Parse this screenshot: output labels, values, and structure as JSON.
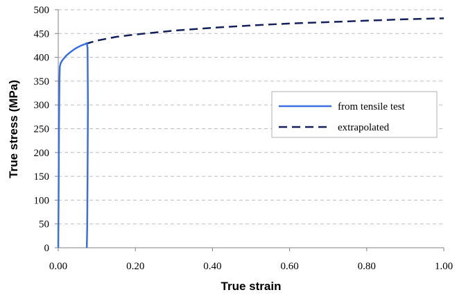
{
  "chart_data": {
    "type": "line",
    "title": "",
    "xlabel": "True strain",
    "ylabel": "True stress (MPa)",
    "xlim": [
      0,
      1
    ],
    "ylim": [
      0,
      500
    ],
    "x_ticks": [
      "0.00",
      "0.20",
      "0.40",
      "0.60",
      "0.80",
      "1.00"
    ],
    "y_ticks": [
      "0",
      "50",
      "100",
      "150",
      "200",
      "250",
      "300",
      "350",
      "400",
      "450",
      "500"
    ],
    "grid": "horizontal dashed",
    "legend_position": "right",
    "series": [
      {
        "name": "from tensile test",
        "color": "#3a6fe0",
        "style": "solid",
        "points": [
          [
            0.0,
            0
          ],
          [
            0.001,
            120
          ],
          [
            0.002,
            260
          ],
          [
            0.003,
            350
          ],
          [
            0.004,
            380
          ],
          [
            0.006,
            387
          ],
          [
            0.01,
            393
          ],
          [
            0.02,
            403
          ],
          [
            0.03,
            410
          ],
          [
            0.04,
            416
          ],
          [
            0.05,
            421
          ],
          [
            0.06,
            425
          ],
          [
            0.07,
            428
          ],
          [
            0.074,
            430
          ],
          [
            0.076,
            420
          ],
          [
            0.077,
            300
          ],
          [
            0.076,
            150
          ],
          [
            0.075,
            40
          ],
          [
            0.074,
            0
          ]
        ]
      },
      {
        "name": "extrapolated",
        "color": "#14205c",
        "style": "dashed",
        "points": [
          [
            0.07,
            428
          ],
          [
            0.1,
            435
          ],
          [
            0.15,
            443
          ],
          [
            0.2,
            448
          ],
          [
            0.3,
            456
          ],
          [
            0.4,
            462
          ],
          [
            0.5,
            467
          ],
          [
            0.6,
            471
          ],
          [
            0.7,
            474
          ],
          [
            0.8,
            477
          ],
          [
            0.9,
            480
          ],
          [
            1.0,
            482
          ]
        ]
      }
    ]
  }
}
